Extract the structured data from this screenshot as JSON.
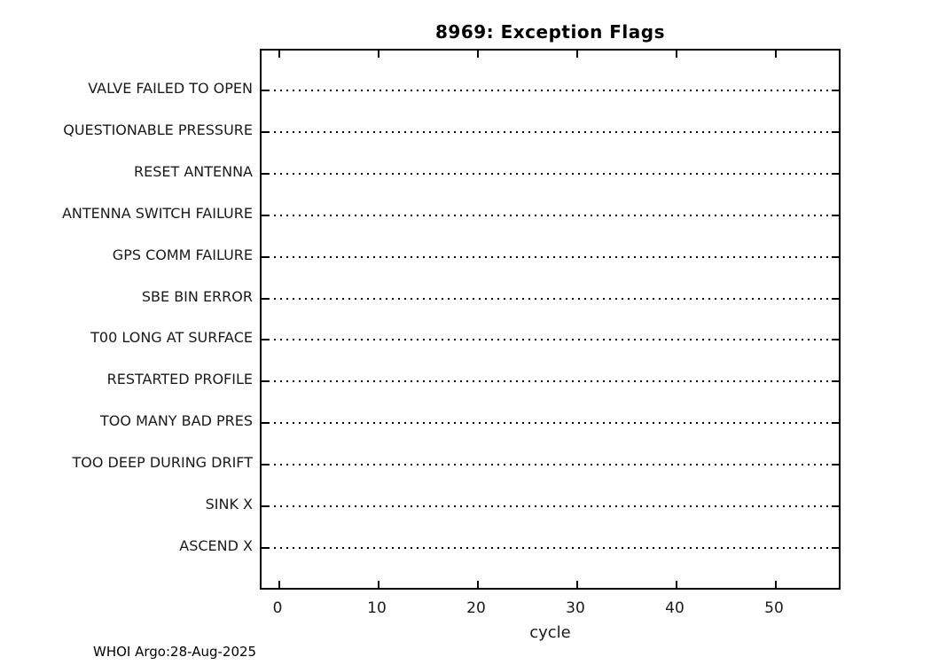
{
  "chart_data": {
    "type": "scatter",
    "title": "8969: Exception Flags",
    "xlabel": "cycle",
    "categories": [
      "VALVE FAILED TO OPEN",
      "QUESTIONABLE PRESSURE",
      "RESET ANTENNA",
      "ANTENNA SWITCH FAILURE",
      "GPS COMM FAILURE",
      "SBE BIN ERROR",
      "T00 LONG AT SURFACE",
      "RESTARTED PROFILE",
      "TOO MANY BAD PRES",
      "TOO DEEP DURING DRIFT",
      "SINK X",
      "ASCEND X"
    ],
    "xticks": [
      0,
      10,
      20,
      30,
      40,
      50
    ],
    "xlim": [
      -1.8,
      56.7
    ],
    "points": [],
    "grid": {
      "style": "dotted-horizontal",
      "color": "#000000"
    },
    "colors": {
      "axis": "#000000",
      "text": "#1a1a1a",
      "background": "#ffffff"
    }
  },
  "footer": {
    "credit": "WHOI Argo:28-Aug-2025"
  }
}
